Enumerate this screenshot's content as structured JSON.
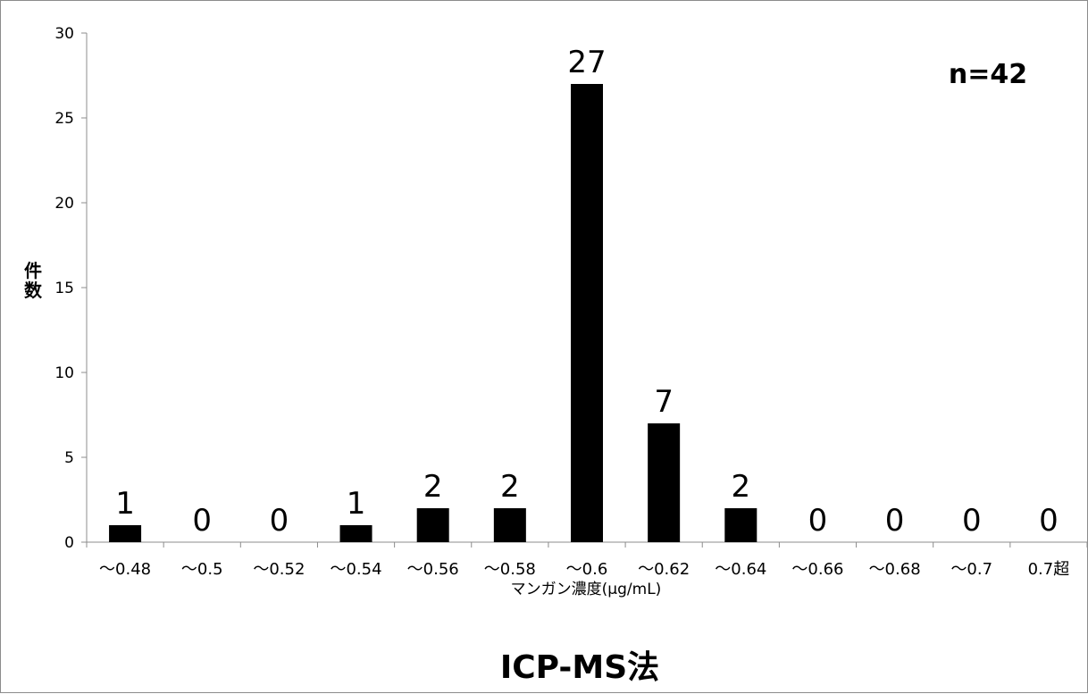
{
  "chart_data": {
    "type": "bar",
    "title": "ICP-MS法",
    "annotation": "n=42",
    "xlabel": "マンガン濃度(μg/mL)",
    "ylabel": "件数",
    "categories": [
      "～0.48",
      "～0.5",
      "～0.52",
      "～0.54",
      "～0.56",
      "～0.58",
      "～0.6",
      "～0.62",
      "～0.64",
      "～0.66",
      "～0.68",
      "～0.7",
      "0.7超"
    ],
    "values": [
      1,
      0,
      0,
      1,
      2,
      2,
      27,
      7,
      2,
      0,
      0,
      0,
      0
    ],
    "ylim": [
      0,
      30
    ],
    "yticks": [
      "0",
      "5",
      "10",
      "15",
      "20",
      "25",
      "30"
    ],
    "grid": false,
    "legend": "none",
    "bar_color": "#000000"
  }
}
